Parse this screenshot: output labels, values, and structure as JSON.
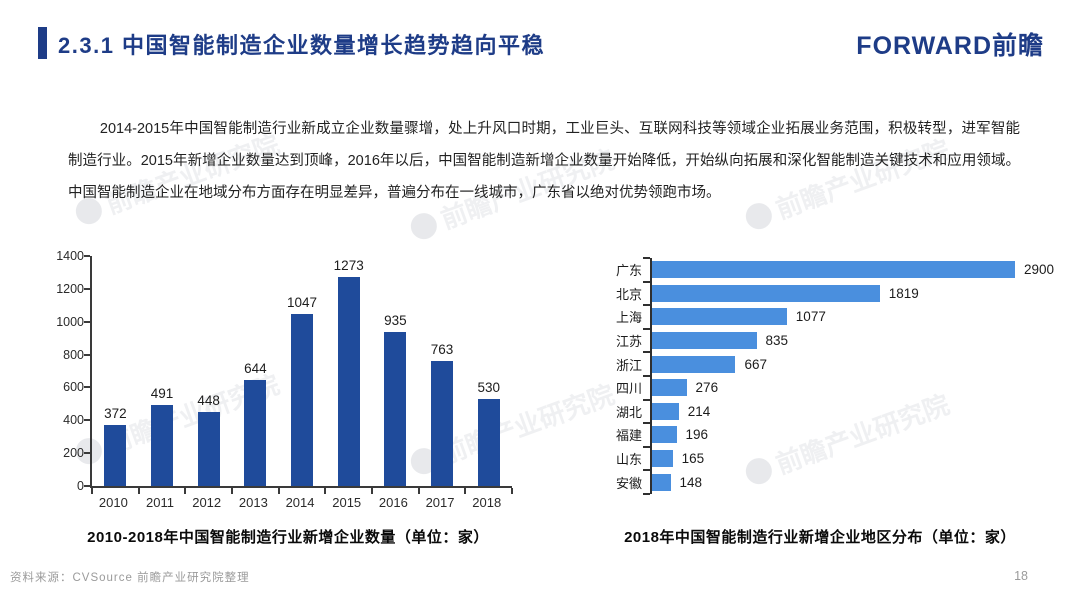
{
  "header": {
    "title": "2.3.1 中国智能制造企业数量增长趋势趋向平稳",
    "logo_text": "FORWARD前瞻"
  },
  "paragraph": "2014-2015年中国智能制造行业新成立企业数量骤增，处上升风口时期，工业巨头、互联网科技等领域企业拓展业务范围，积极转型，进军智能制造行业。2015年新增企业数量达到顶峰，2016年以后，中国智能制造新增企业数量开始降低，开始纵向拓展和深化智能制造关键技术和应用领域。中国智能制造企业在地域分布方面存在明显差异，普遍分布在一线城市，广东省以绝对优势领跑市场。",
  "watermark_text": "前瞻产业研究院",
  "chart_data": [
    {
      "type": "bar",
      "title": "2010-2018年中国智能制造行业新增企业数量（单位：家）",
      "categories": [
        "2010",
        "2011",
        "2012",
        "2013",
        "2014",
        "2015",
        "2016",
        "2017",
        "2018"
      ],
      "values": [
        372,
        491,
        448,
        644,
        1047,
        1273,
        935,
        763,
        530
      ],
      "xlabel": "",
      "ylabel": "",
      "ylim": [
        0,
        1400
      ],
      "yticks": [
        0,
        200,
        400,
        600,
        800,
        1000,
        1200,
        1400
      ],
      "grid": false,
      "bar_color": "#1f4b9b"
    },
    {
      "type": "bar",
      "orientation": "horizontal",
      "title": "2018年中国智能制造行业新增企业地区分布（单位：家）",
      "categories": [
        "广东",
        "北京",
        "上海",
        "江苏",
        "浙江",
        "四川",
        "湖北",
        "福建",
        "山东",
        "安徽"
      ],
      "values": [
        2900,
        1819,
        1077,
        835,
        667,
        276,
        214,
        196,
        165,
        148
      ],
      "xlabel": "",
      "ylabel": "",
      "xlim": [
        0,
        2900
      ],
      "grid": false,
      "bar_color": "#4a8fde"
    }
  ],
  "footer": {
    "source": "资料来源：CVSource 前瞻产业研究院整理",
    "page_number": "18"
  }
}
